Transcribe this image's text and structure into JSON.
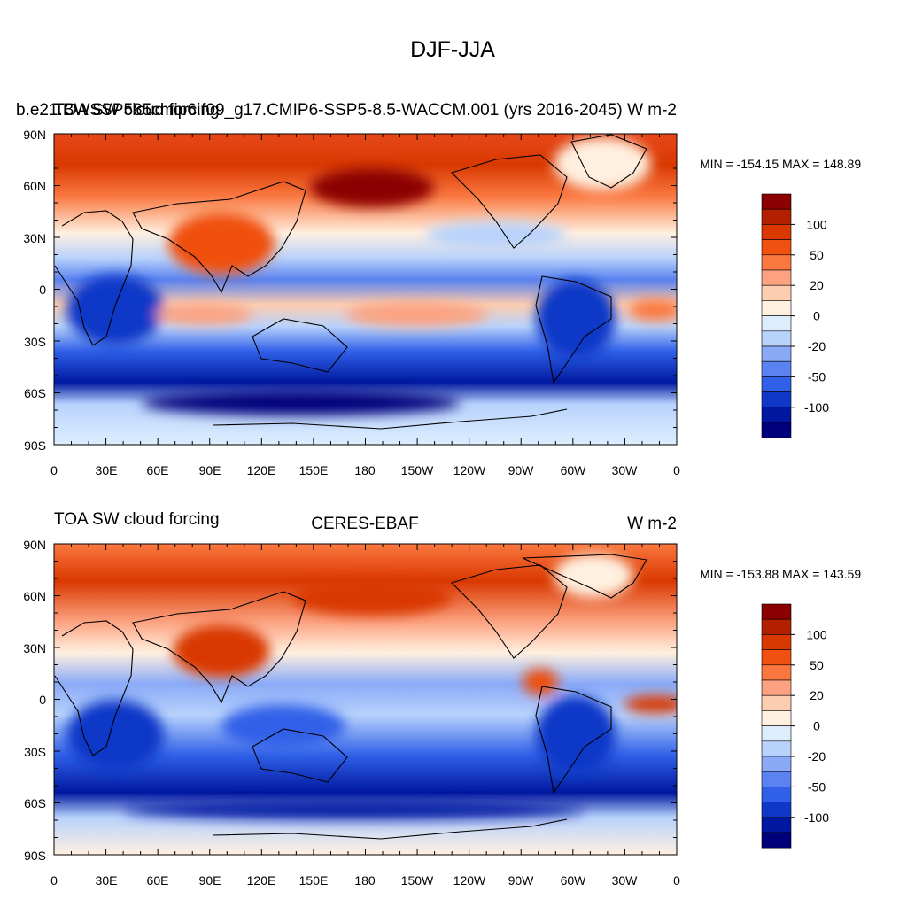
{
  "figure_title": "DJF-JJA",
  "panels": [
    {
      "left_title": "b.e21.BWSSP585cmip6.f09_g17.CMIP6-SSP5-8.5-WACCM.001 (yrs 2016-2045)",
      "left_title_overlay": "TOA SW cloud forcing",
      "center_title": "",
      "units": "W m-2",
      "min_max_text": "MIN = -154.15 MAX = 148.89"
    },
    {
      "left_title": "TOA SW cloud forcing",
      "center_title": "CERES-EBAF",
      "units": "W m-2",
      "min_max_text": "MIN = -153.88 MAX = 143.59"
    }
  ],
  "axes": {
    "lat_ticks": [
      "90N",
      "60N",
      "30N",
      "0",
      "30S",
      "60S",
      "90S"
    ],
    "lon_ticks": [
      "0",
      "30E",
      "60E",
      "90E",
      "120E",
      "150E",
      "180",
      "150W",
      "120W",
      "90W",
      "60W",
      "30W",
      "0"
    ]
  },
  "colorbar": {
    "labels": [
      "100",
      "50",
      "20",
      "0",
      "-20",
      "-50",
      "-100"
    ],
    "colors_top_to_bottom": [
      "#8b0000",
      "#b22000",
      "#d93800",
      "#f05010",
      "#fa7840",
      "#fca280",
      "#fdcdb0",
      "#fff0e0",
      "#dceefe",
      "#b8d2fc",
      "#8aaaf8",
      "#5a82f0",
      "#3060e8",
      "#1038c8",
      "#0018a0",
      "#00007a"
    ]
  },
  "chart_data": {
    "type": "heatmap",
    "title": "DJF-JJA",
    "xlabel": "",
    "ylabel": "",
    "x_range": [
      0,
      360
    ],
    "y_range": [
      -90,
      90
    ],
    "panels": [
      {
        "name": "b.e21.BWSSP585cmip6.f09_g17.CMIP6-SSP5-8.5-WACCM.001 (yrs 2016-2045)",
        "min": -154.15,
        "max": 148.89
      },
      {
        "name": "CERES-EBAF",
        "min": -153.88,
        "max": 143.59
      }
    ],
    "contour_levels": [
      -100,
      -50,
      -20,
      0,
      20,
      50,
      100
    ]
  }
}
